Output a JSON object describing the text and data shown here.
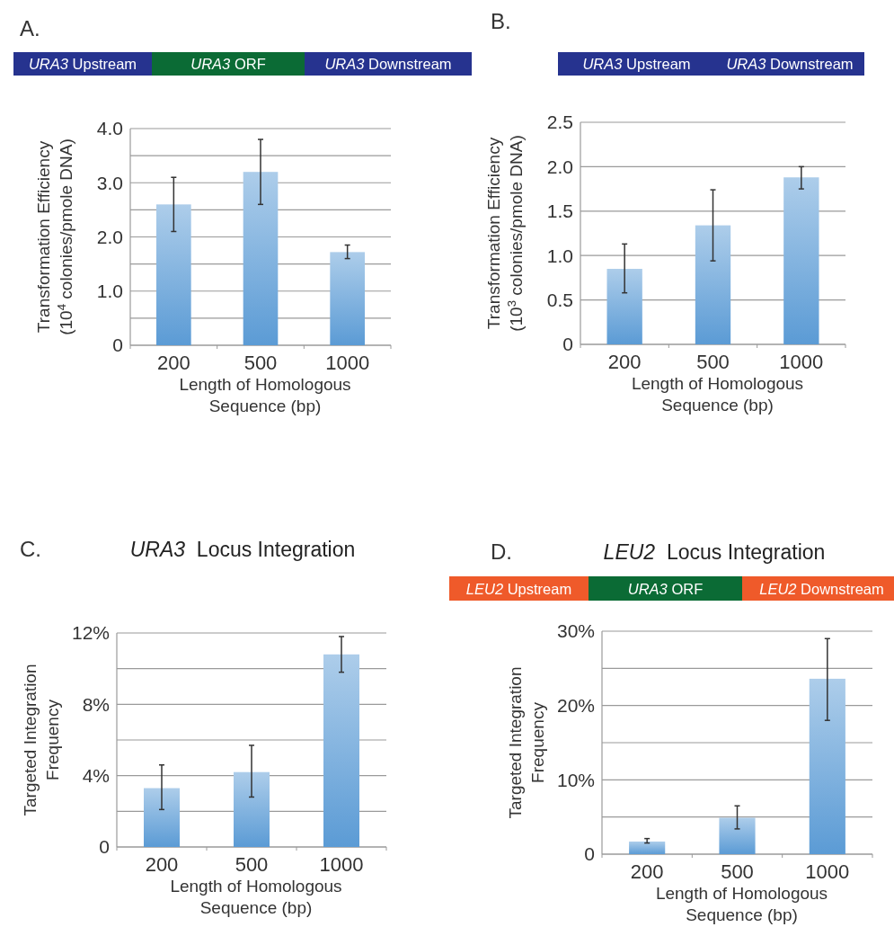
{
  "chart_data": [
    {
      "type": "bar",
      "annotations": [
        "A.",
        "URA3 Upstream",
        "URA3 ORF",
        "URA3 Downstream"
      ],
      "xlabel": "Length of Homologous\nSequence (bp)",
      "ylabel": "Transformation Efficiency\n(10$^{4}$ colonies/pmole DNA)",
      "categories": [
        "200",
        "500",
        "1000"
      ],
      "values": [
        2.6,
        3.2,
        1.72
      ],
      "errors": [
        [
          2.1,
          3.1
        ],
        [
          2.6,
          3.8
        ],
        [
          1.6,
          1.85
        ]
      ],
      "color": "#5b9bd5",
      "ylim": [
        0,
        4
      ],
      "yticks": [
        0,
        {
          "value": 0.5,
          "label": null
        },
        {
          "value": 1,
          "label": "1.0"
        },
        {
          "value": 1.5,
          "label": null
        },
        {
          "value": 2,
          "label": "2.0"
        },
        {
          "value": 2.5,
          "label": null
        },
        {
          "value": 3,
          "label": "3.0"
        },
        {
          "value": 3.5,
          "label": null
        },
        {
          "value": 4,
          "label": "4.0"
        }
      ],
      "grid": "y"
    },
    {
      "type": "bar",
      "annotations": [
        "B.",
        "URA3 Upstream",
        "URA3 Downstream"
      ],
      "xlabel": "Length of Homologous\nSequence (bp)",
      "ylabel": "Transformation Efficiency\n(10$^{3}$ colonies/pmole DNA)",
      "categories": [
        "200",
        "500",
        "1000"
      ],
      "values": [
        0.85,
        1.34,
        1.88
      ],
      "errors": [
        [
          0.58,
          1.13
        ],
        [
          0.94,
          1.74
        ],
        [
          1.75,
          2.0
        ]
      ],
      "color": "#5b9bd5",
      "ylim": [
        0,
        2.5
      ],
      "yticks": [
        0,
        0.5,
        {
          "value": 1,
          "label": "1.0"
        },
        1.5,
        {
          "value": 2,
          "label": "2.0"
        },
        2.5
      ],
      "grid": "y"
    },
    {
      "type": "bar",
      "title": "URA3  Locus Integration",
      "annotations": [
        "C."
      ],
      "xlabel": "Length of Homologous\nSequence (bp)",
      "ylabel": "Targeted Integration\nFrequency",
      "categories": [
        "200",
        "500",
        "1000"
      ],
      "values": [
        3.3,
        4.2,
        10.8
      ],
      "errors": [
        [
          2.1,
          4.6
        ],
        [
          2.8,
          5.7
        ],
        [
          9.8,
          11.8
        ]
      ],
      "color": "#5b9bd5",
      "ylim": [
        0,
        12
      ],
      "yticks": [
        0,
        {
          "value": 2,
          "label": null
        },
        {
          "value": 4,
          "label": "4%"
        },
        {
          "value": 6,
          "label": null
        },
        {
          "value": 8,
          "label": "8%"
        },
        {
          "value": 10,
          "label": null
        },
        {
          "value": 12,
          "label": "12%"
        }
      ],
      "grid": "y"
    },
    {
      "type": "bar",
      "title": "LEU2  Locus Integration",
      "annotations": [
        "D.",
        "LEU2 Upstream",
        "URA3 ORF",
        "LEU2 Downstream"
      ],
      "xlabel": "Length of Homologous\nSequence (bp)",
      "ylabel": "Targeted Integration\nFrequency",
      "categories": [
        "200",
        "500",
        "1000"
      ],
      "values": [
        1.7,
        4.9,
        23.6
      ],
      "errors": [
        [
          1.5,
          2.1
        ],
        [
          3.4,
          6.5
        ],
        [
          18,
          29
        ]
      ],
      "color": "#5b9bd5",
      "ylim": [
        0,
        30
      ],
      "yticks": [
        0,
        {
          "value": 5,
          "label": null
        },
        {
          "value": 10,
          "label": "10%"
        },
        {
          "value": 15,
          "label": null
        },
        {
          "value": 20,
          "label": "20%"
        },
        {
          "value": 25,
          "label": null
        },
        {
          "value": 30,
          "label": "30%"
        }
      ],
      "grid": "y"
    }
  ]
}
